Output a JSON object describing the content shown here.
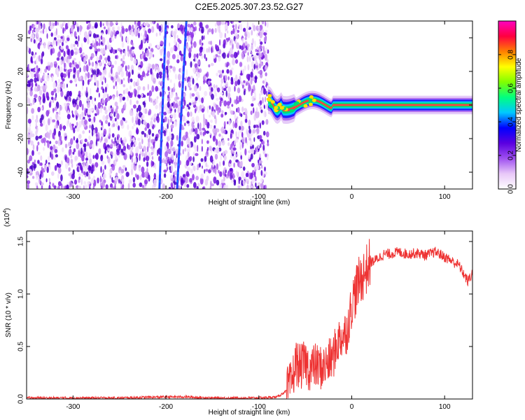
{
  "title": "C2E5.2025.307.23.52.G27",
  "chart_data": [
    {
      "type": "heatmap",
      "xlabel": "Height of straight line (km)",
      "ylabel": "Frequency (Hz)",
      "xlim": [
        -350,
        130
      ],
      "ylim": [
        -50,
        50
      ],
      "xticks": [
        -300,
        -200,
        -100,
        0,
        100
      ],
      "yticks": [
        -40,
        -20,
        0,
        20,
        40
      ],
      "grid": false,
      "colorbar": {
        "label": "Normalized spectral amplitude",
        "range": [
          0,
          1
        ],
        "ticks": [
          "0.0",
          "0.2",
          "0.4",
          "0.6",
          "0.8"
        ],
        "colors": [
          "#ffffff",
          "#e8c8f8",
          "#9f50f0",
          "#5a00e0",
          "#0000ff",
          "#00c8ff",
          "#00ff80",
          "#80ff00",
          "#ffff00",
          "#ff8000",
          "#ff0040",
          "#ff00c0"
        ]
      },
      "regions": {
        "noise_x_range": [
          -350,
          -90
        ],
        "signal_x_range": [
          -90,
          130
        ],
        "signal_freq_hz": 0,
        "streak_lines_x_at_top_and_bottom": [
          [
            -200,
            -207
          ],
          [
            -178,
            -188
          ]
        ]
      }
    },
    {
      "type": "line",
      "xlabel": "Height of straight line (km)",
      "ylabel": "SNR (10 * v/v)",
      "yscale_label": "(x10^4)",
      "xlim": [
        -350,
        130
      ],
      "ylim": [
        0,
        1.6
      ],
      "xticks": [
        -300,
        -200,
        -100,
        0,
        100
      ],
      "yticks": [
        "0.0",
        "0.5",
        "1.0",
        "1.5"
      ],
      "grid": false,
      "series": [
        {
          "color": "#ee3333",
          "x": [
            -350,
            -300,
            -250,
            -200,
            -180,
            -150,
            -100,
            -80,
            -70,
            -65,
            -60,
            -55,
            -50,
            -45,
            -40,
            -35,
            -30,
            -25,
            -20,
            -15,
            -10,
            -5,
            0,
            5,
            10,
            15,
            20,
            25,
            30,
            35,
            40,
            50,
            60,
            70,
            80,
            90,
            95,
            100,
            105,
            110,
            115,
            120,
            125,
            130
          ],
          "y": [
            0.01,
            0.01,
            0.01,
            0.02,
            0.02,
            0.01,
            0.01,
            0.02,
            0.08,
            0.15,
            0.35,
            0.3,
            0.35,
            0.28,
            0.32,
            0.3,
            0.3,
            0.35,
            0.4,
            0.55,
            0.6,
            0.65,
            0.9,
            1.05,
            1.15,
            1.22,
            1.3,
            1.32,
            1.35,
            1.38,
            1.38,
            1.4,
            1.38,
            1.39,
            1.37,
            1.4,
            1.38,
            1.35,
            1.33,
            1.3,
            1.28,
            1.2,
            1.12,
            1.2
          ]
        }
      ]
    }
  ]
}
